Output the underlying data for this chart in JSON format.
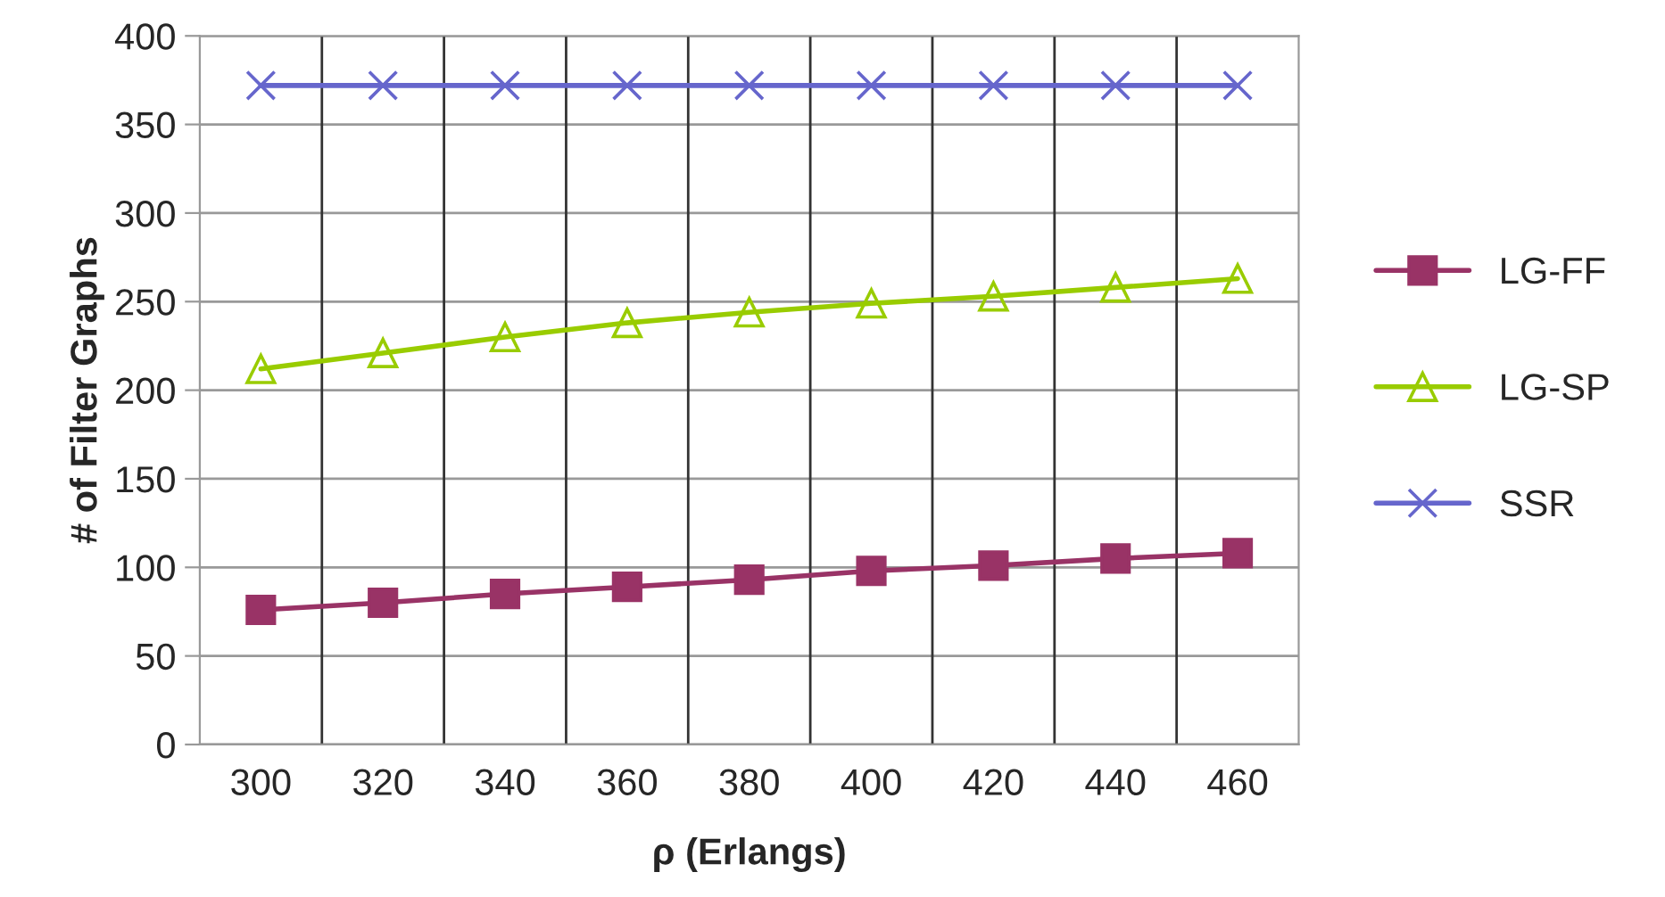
{
  "chart_data": {
    "type": "line",
    "xlabel": "ρ (Erlangs)",
    "ylabel": "# of Filter Graphs",
    "categories": [
      "300",
      "320",
      "340",
      "360",
      "380",
      "400",
      "420",
      "440",
      "460"
    ],
    "series": [
      {
        "name": "LG-FF",
        "color": "#993366",
        "marker": "square",
        "values": [
          76,
          80,
          85,
          89,
          93,
          98,
          101,
          105,
          108
        ]
      },
      {
        "name": "LG-SP",
        "color": "#99cc00",
        "marker": "triangle",
        "values": [
          212,
          221,
          230,
          238,
          244,
          249,
          253,
          258,
          263
        ]
      },
      {
        "name": "SSR",
        "color": "#6666cc",
        "marker": "cross",
        "values": [
          372,
          372,
          372,
          372,
          372,
          372,
          372,
          372,
          372
        ]
      }
    ],
    "ylim": [
      0,
      400
    ],
    "yticks": [
      0,
      50,
      100,
      150,
      200,
      250,
      300,
      350,
      400
    ],
    "grid": true,
    "legend": "right"
  }
}
